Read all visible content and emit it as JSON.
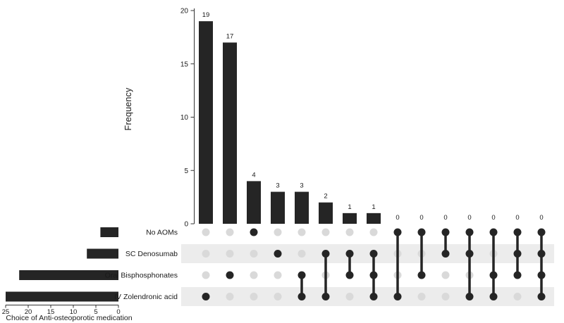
{
  "figure": {
    "background": "#ffffff",
    "bar_color": "#252525",
    "active_dot_color": "#252525",
    "inactive_dot_color": "#d9d9d9",
    "stripe_color": "#ececec",
    "axis_color": "#333333",
    "text_color": "#1a1a1a"
  },
  "chart_data": {
    "type": "bar",
    "subtype": "upset-plot",
    "frequency_axis": {
      "label": "Frequency",
      "ticks": [
        0,
        5,
        10,
        15,
        20
      ],
      "max": 20
    },
    "set_size_axis": {
      "label": "Choice of Anti-osteoporotic medication",
      "ticks": [
        25,
        20,
        15,
        10,
        5,
        0
      ],
      "max": 25
    },
    "sets": [
      {
        "name": "No AOMs",
        "size": 4
      },
      {
        "name": "SC Denosumab",
        "size": 7
      },
      {
        "name": "Oral Bisphosphonates",
        "size": 22
      },
      {
        "name": "IV Zolendronic acid",
        "size": 25
      }
    ],
    "categories": [
      "IV Zolendronic acid",
      "Oral Bisphosphonates",
      "No AOMs",
      "SC Denosumab",
      "Oral Bisphosphonates+IV Zolendronic acid",
      "SC Denosumab+IV Zolendronic acid",
      "SC Denosumab+Oral Bisphosphonates",
      "SC Denosumab+Oral Bisphosphonates+IV Zolendronic acid",
      "No AOMs+IV Zolendronic acid",
      "No AOMs+Oral Bisphosphonates",
      "No AOMs+SC Denosumab",
      "No AOMs+SC Denosumab+IV Zolendronic acid",
      "No AOMs+Oral Bisphosphonates+IV Zolendronic acid",
      "No AOMs+SC Denosumab+Oral Bisphosphonates",
      "No AOMs+SC Denosumab+Oral Bisphosphonates+IV Zolendronic acid"
    ],
    "values": [
      19,
      17,
      4,
      3,
      3,
      2,
      1,
      1,
      0,
      0,
      0,
      0,
      0,
      0,
      0
    ],
    "intersections": [
      {
        "value": 19,
        "members": [
          "IV Zolendronic acid"
        ]
      },
      {
        "value": 17,
        "members": [
          "Oral Bisphosphonates"
        ]
      },
      {
        "value": 4,
        "members": [
          "No AOMs"
        ]
      },
      {
        "value": 3,
        "members": [
          "SC Denosumab"
        ]
      },
      {
        "value": 3,
        "members": [
          "Oral Bisphosphonates",
          "IV Zolendronic acid"
        ]
      },
      {
        "value": 2,
        "members": [
          "SC Denosumab",
          "IV Zolendronic acid"
        ]
      },
      {
        "value": 1,
        "members": [
          "SC Denosumab",
          "Oral Bisphosphonates"
        ]
      },
      {
        "value": 1,
        "members": [
          "SC Denosumab",
          "Oral Bisphosphonates",
          "IV Zolendronic acid"
        ]
      },
      {
        "value": 0,
        "members": [
          "No AOMs",
          "IV Zolendronic acid"
        ]
      },
      {
        "value": 0,
        "members": [
          "No AOMs",
          "Oral Bisphosphonates"
        ]
      },
      {
        "value": 0,
        "members": [
          "No AOMs",
          "SC Denosumab"
        ]
      },
      {
        "value": 0,
        "members": [
          "No AOMs",
          "SC Denosumab",
          "IV Zolendronic acid"
        ]
      },
      {
        "value": 0,
        "members": [
          "No AOMs",
          "Oral Bisphosphonates",
          "IV Zolendronic acid"
        ]
      },
      {
        "value": 0,
        "members": [
          "No AOMs",
          "SC Denosumab",
          "Oral Bisphosphonates"
        ]
      },
      {
        "value": 0,
        "members": [
          "No AOMs",
          "SC Denosumab",
          "Oral Bisphosphonates",
          "IV Zolendronic acid"
        ]
      }
    ]
  }
}
